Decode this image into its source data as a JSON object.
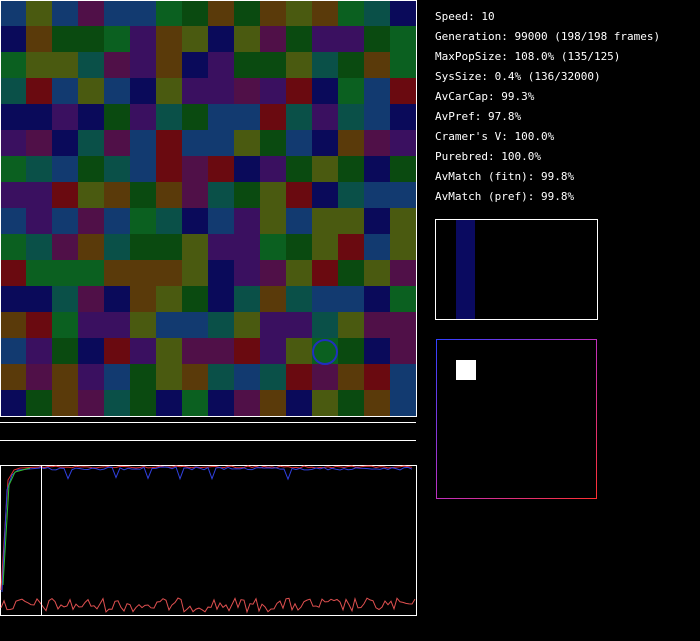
{
  "stats": [
    "Speed: 10",
    "Generation: 99000 (198/198 frames)",
    "MaxPopSize: 108.0% (135/125)",
    "SysSize: 0.4% (136/32000)",
    "AvCarCap: 99.3%",
    "AvPref: 97.8%",
    "Cramer's V: 100.0%",
    "Purebred: 100.0%",
    "AvMatch (fitn): 99.8%",
    "AvMatch (pref): 99.8%"
  ]
}
